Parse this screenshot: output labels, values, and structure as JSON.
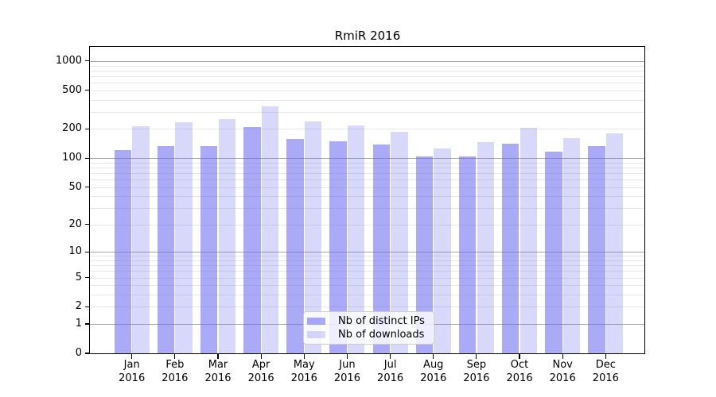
{
  "figure": {
    "title": "RmiR 2016",
    "background": "#ffffff"
  },
  "chart_data": {
    "type": "bar",
    "title": "RmiR 2016",
    "categories": [
      "Jan",
      "Feb",
      "Mar",
      "Apr",
      "May",
      "Jun",
      "Jul",
      "Aug",
      "Sep",
      "Oct",
      "Nov",
      "Dec"
    ],
    "category_year": "2016",
    "series": [
      {
        "name": "Nb of distinct IPs",
        "color": "rgba(100,100,240,0.55)",
        "values": [
          122,
          132,
          133,
          210,
          159,
          148,
          137,
          105,
          105,
          140,
          117,
          132
        ]
      },
      {
        "name": "Nb of downloads",
        "color": "rgba(100,100,240,0.25)",
        "values": [
          214,
          233,
          253,
          344,
          240,
          218,
          188,
          125,
          147,
          205,
          160,
          180
        ]
      }
    ],
    "yscale": "log10(value+1)",
    "yticks": [
      0,
      1,
      2,
      5,
      10,
      20,
      50,
      100,
      200,
      500,
      1000
    ],
    "ylim": [
      0,
      1400
    ],
    "xlabel": "",
    "ylabel": "",
    "grid": "both",
    "legend": {
      "position": "lower center",
      "entries": [
        "Nb of distinct IPs",
        "Nb of downloads"
      ]
    },
    "colors": {
      "grid_major": "#a6a6a6",
      "grid_minor": "#e7e7e7",
      "axis": "#000000",
      "background": "#ffffff"
    }
  }
}
